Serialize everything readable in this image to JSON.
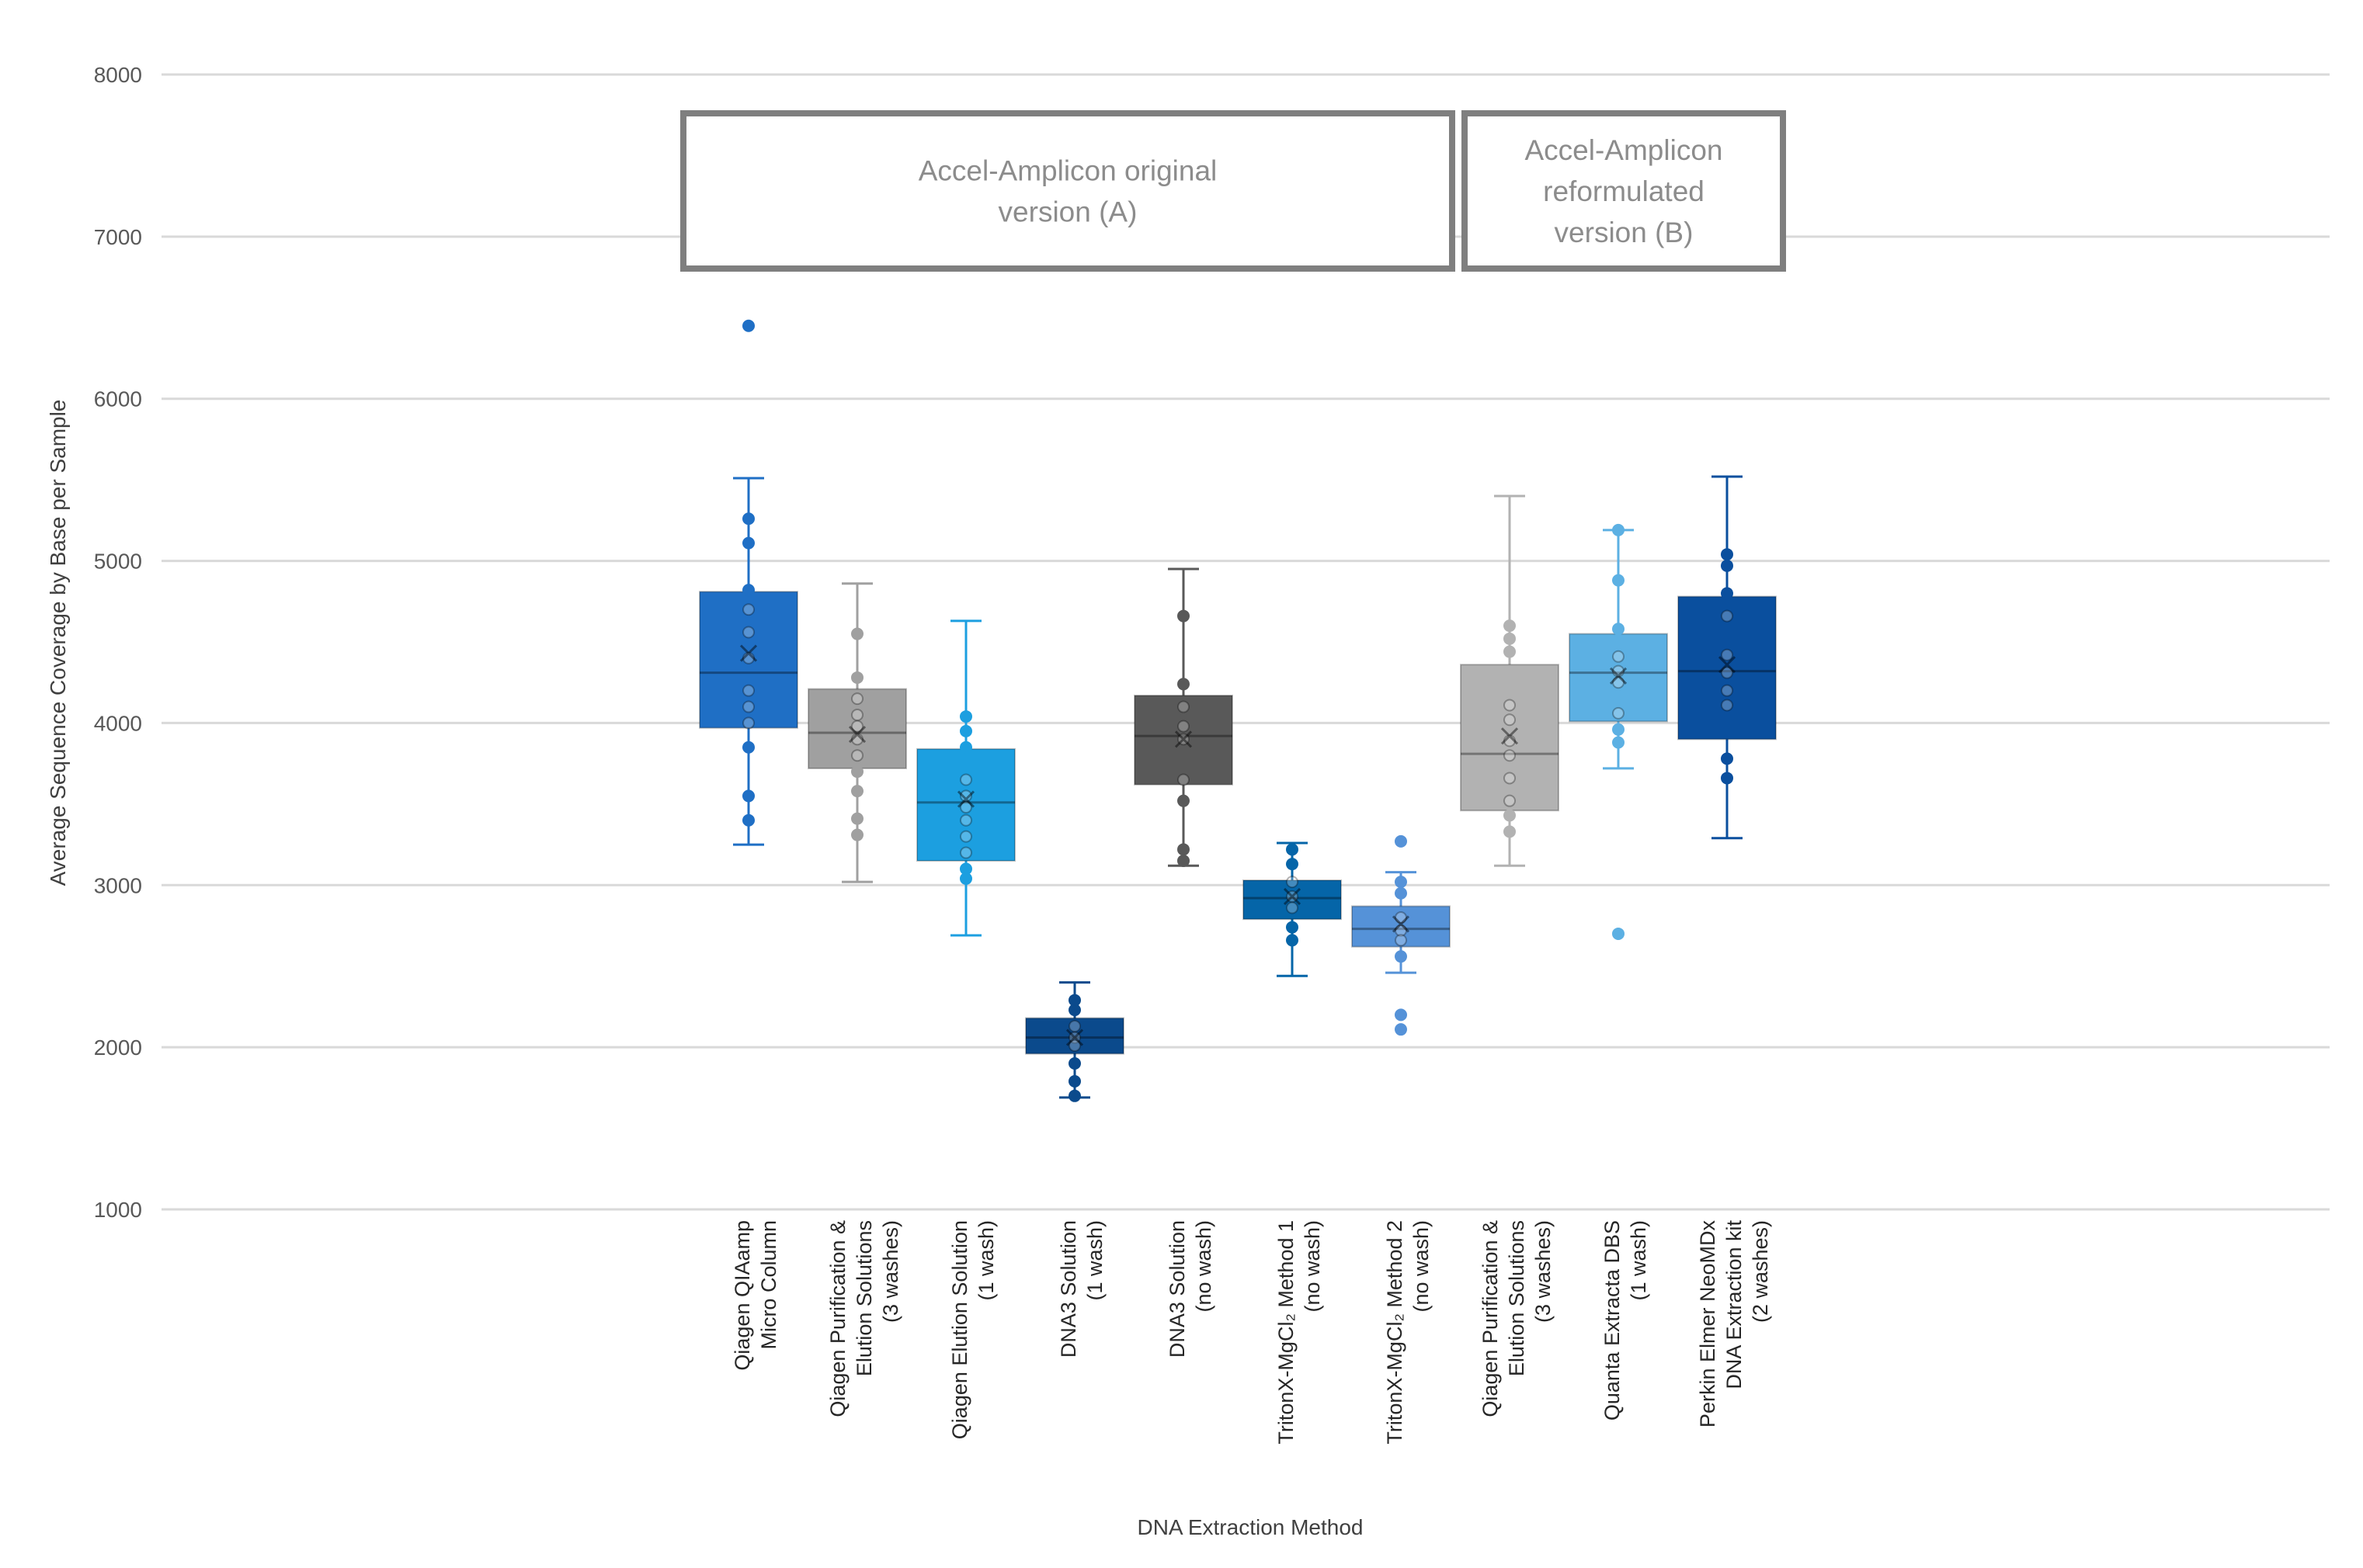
{
  "chart_data": {
    "type": "box",
    "xlabel": "DNA Extraction Method",
    "ylabel": "Average Sequence Coverage by Base per Sample",
    "ylim": [
      1000,
      8000
    ],
    "yticks": [
      1000,
      2000,
      3000,
      4000,
      5000,
      6000,
      7000,
      8000
    ],
    "ytick_labels": [
      "1000",
      "2000",
      "3000",
      "4000",
      "5000",
      "6000",
      "7000",
      "8000"
    ],
    "grid": "horizontal",
    "groups": [
      {
        "label_lines": [
          "Accel-Amplicon original",
          "version (A)"
        ],
        "from": 0,
        "to": 6
      },
      {
        "label_lines": [
          "Accel-Amplicon",
          "reformulated",
          "version (B)"
        ],
        "from": 7,
        "to": 9
      }
    ],
    "categories": [
      {
        "label_lines": [
          "Qiagen QIAamp",
          "Micro Column"
        ],
        "color": "#1f6fc5",
        "min": 3250,
        "q1": 3970,
        "median": 4310,
        "mean": 4430,
        "q3": 4810,
        "max": 5510,
        "points": [
          6450,
          5260,
          5110,
          4820,
          4700,
          4560,
          4400,
          4200,
          4100,
          4000,
          3850,
          3550,
          3400
        ]
      },
      {
        "label_lines": [
          "Qiagen Purification &",
          "Elution Solutions",
          "(3 washes)"
        ],
        "color": "#a0a0a0",
        "min": 3020,
        "q1": 3720,
        "median": 3940,
        "mean": 3930,
        "q3": 4210,
        "max": 4860,
        "points": [
          4550,
          4280,
          4150,
          4050,
          3980,
          3900,
          3800,
          3700,
          3580,
          3410,
          3310
        ]
      },
      {
        "label_lines": [
          "Qiagen Elution Solution",
          "(1 wash)"
        ],
        "color": "#1c9fe0",
        "min": 2690,
        "q1": 3150,
        "median": 3510,
        "mean": 3530,
        "q3": 3840,
        "max": 4630,
        "points": [
          4040,
          3950,
          3850,
          3650,
          3550,
          3480,
          3400,
          3300,
          3200,
          3100,
          3040
        ]
      },
      {
        "label_lines": [
          "DNA3 Solution",
          "(1 wash)"
        ],
        "color": "#0b4a8c",
        "min": 1690,
        "q1": 1960,
        "median": 2060,
        "mean": 2060,
        "q3": 2180,
        "max": 2400,
        "points": [
          2290,
          2230,
          2130,
          2060,
          2010,
          1900,
          1790,
          1700
        ]
      },
      {
        "label_lines": [
          "DNA3 Solution",
          "(no wash)"
        ],
        "color": "#595959",
        "min": 3120,
        "q1": 3620,
        "median": 3920,
        "mean": 3900,
        "q3": 4170,
        "max": 4950,
        "points": [
          4660,
          4240,
          4100,
          3980,
          3900,
          3650,
          3520,
          3220,
          3150
        ]
      },
      {
        "label_lines": [
          "TritonX-MgCl₂ Method 1",
          "(no wash)"
        ],
        "color": "#0565a8",
        "min": 2440,
        "q1": 2790,
        "median": 2920,
        "mean": 2930,
        "q3": 3030,
        "max": 3260,
        "points": [
          3220,
          3130,
          3020,
          2930,
          2860,
          2740,
          2660
        ]
      },
      {
        "label_lines": [
          "TritonX-MgCl₂ Method 2",
          "(no wash)"
        ],
        "color": "#5592d8",
        "min": 2460,
        "q1": 2620,
        "median": 2730,
        "mean": 2760,
        "q3": 2870,
        "max": 3080,
        "points": [
          3270,
          3020,
          2950,
          2800,
          2720,
          2660,
          2560,
          2200,
          2110
        ]
      },
      {
        "label_lines": [
          "Qiagen Purification &",
          "Elution Solutions",
          "(3 washes)"
        ],
        "color": "#b2b2b2",
        "min": 3120,
        "q1": 3460,
        "median": 3810,
        "mean": 3920,
        "q3": 4360,
        "max": 5400,
        "points": [
          4600,
          4520,
          4440,
          4110,
          4020,
          3890,
          3800,
          3660,
          3520,
          3430,
          3330
        ]
      },
      {
        "label_lines": [
          "Quanta Extracta DBS",
          "(1 wash)"
        ],
        "color": "#5cb0e3",
        "min": 3720,
        "q1": 4010,
        "median": 4310,
        "mean": 4290,
        "q3": 4550,
        "max": 5190,
        "points": [
          5190,
          4880,
          4580,
          4410,
          4320,
          4250,
          4060,
          3960,
          3880,
          2700
        ]
      },
      {
        "label_lines": [
          "Perkin Elmer NeoMDx",
          "DNA Extraction kit",
          "(2 washes)"
        ],
        "color": "#0a4f9e",
        "min": 3290,
        "q1": 3900,
        "median": 4320,
        "mean": 4360,
        "q3": 4780,
        "max": 5520,
        "points": [
          5040,
          4970,
          4800,
          4660,
          4420,
          4310,
          4200,
          4110,
          3780,
          3660
        ]
      }
    ]
  }
}
